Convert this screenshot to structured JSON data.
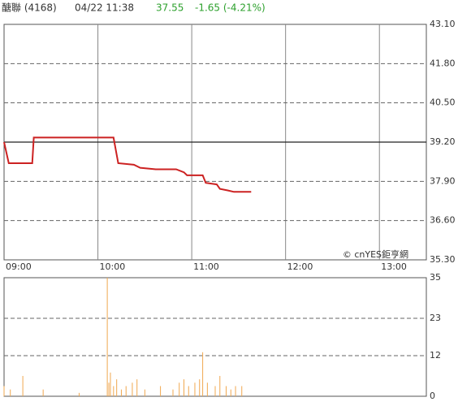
{
  "header": {
    "name": "醣聯 (4168)",
    "time": "04/22 11:38",
    "price": "37.55",
    "change": "-1.65 (-4.21%)",
    "color": "#2ca02c"
  },
  "chart_data": [
    {
      "type": "line",
      "color": "#cc2222",
      "x": [
        "09:00",
        "09:03",
        "09:18",
        "09:19",
        "10:10",
        "10:13",
        "10:23",
        "10:27",
        "10:37",
        "10:50",
        "10:55",
        "10:57",
        "11:07",
        "11:09",
        "11:16",
        "11:18",
        "11:23",
        "11:27",
        "11:38"
      ],
      "values": [
        39.2,
        38.5,
        38.5,
        39.35,
        39.35,
        38.5,
        38.45,
        38.35,
        38.3,
        38.3,
        38.2,
        38.1,
        38.1,
        37.85,
        37.8,
        37.65,
        37.6,
        37.55,
        37.55
      ],
      "xlim": [
        "09:00",
        "13:30"
      ],
      "xticks": [
        "09:00",
        "10:00",
        "11:00",
        "12:00",
        "13:00"
      ],
      "ylim": [
        35.3,
        43.1
      ],
      "yticks": [
        {
          "value": 35.3,
          "label": "35.30"
        },
        {
          "value": 36.6,
          "label": "36.60"
        },
        {
          "value": 37.9,
          "label": "37.90"
        },
        {
          "value": 39.2,
          "label": "39.20"
        },
        {
          "value": 40.5,
          "label": "40.50"
        },
        {
          "value": 41.8,
          "label": "41.80"
        },
        {
          "value": 43.1,
          "label": "43.10"
        }
      ],
      "reference_line": 39.2,
      "grid": true,
      "annotation": "© cnYES鉅亨網"
    },
    {
      "type": "bar",
      "color": "#f0a850",
      "x": [
        "09:00",
        "09:04",
        "09:12",
        "09:25",
        "09:48",
        "10:06",
        "10:07",
        "10:08",
        "10:10",
        "10:12",
        "10:15",
        "10:18",
        "10:22",
        "10:25",
        "10:30",
        "10:40",
        "10:48",
        "10:52",
        "10:55",
        "10:58",
        "11:02",
        "11:05",
        "11:07",
        "11:10",
        "11:15",
        "11:18",
        "11:22",
        "11:25",
        "11:28",
        "11:32"
      ],
      "values": [
        3,
        2,
        6,
        2,
        1,
        35,
        4,
        7,
        3,
        5,
        2,
        3,
        4,
        5,
        2,
        3,
        2,
        4,
        5,
        3,
        4,
        5,
        13,
        4,
        3,
        6,
        3,
        2,
        3,
        3
      ],
      "xlim": [
        "09:00",
        "13:30"
      ],
      "ylim": [
        0,
        35
      ],
      "yticks": [
        0,
        12,
        23,
        35
      ],
      "grid": true
    }
  ]
}
